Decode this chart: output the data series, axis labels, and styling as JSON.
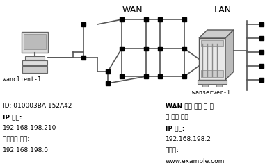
{
  "bg_color": "#ffffff",
  "title_wan": "WAN",
  "title_lan": "LAN",
  "client_label": "wanclient-1",
  "server_label": "wanserver-1",
  "client_info_lines": [
    [
      "ID: 010003BA 152A42",
      false
    ],
    [
      "IP 주소:",
      true
    ],
    [
      "192.168.198.210",
      false
    ],
    [
      "네트워크 주소:",
      true
    ],
    [
      "192.168.198.0",
      false
    ]
  ],
  "server_info_lines": [
    [
      "WAN 부트 서버 및 설",
      true
    ],
    [
      "치 서버 조합",
      false
    ],
    [
      "IP 주소:",
      true
    ],
    [
      "192.168.198.2",
      false
    ],
    [
      "도메인:",
      true
    ],
    [
      "www.example.com",
      false
    ]
  ]
}
